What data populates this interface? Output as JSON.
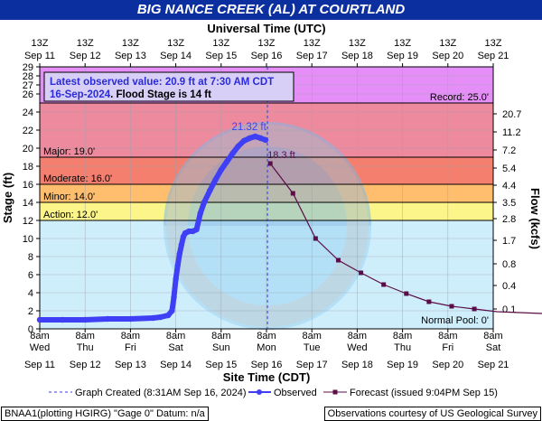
{
  "title": "BIG NANCE CREEK (AL) AT COURTLAND",
  "colors": {
    "header_bg": "#0c2fa0",
    "plot_bg": "#cfeefb",
    "record_zone": "#e58ef8",
    "major_zone": "#ee8a9e",
    "moderate_zone": "#f47f6f",
    "minor_zone": "#ffbe6d",
    "action_zone": "#fbf58a",
    "observed": "#3f3ff5",
    "forecast": "#5b0d47",
    "created_line": "#3b3bd0"
  },
  "chart_data": {
    "type": "line",
    "top_axis_title": "Universal Time (UTC)",
    "top_ticks": [
      {
        "l1": "13Z",
        "l2": "Sep 11"
      },
      {
        "l1": "13Z",
        "l2": "Sep 12"
      },
      {
        "l1": "13Z",
        "l2": "Sep 13"
      },
      {
        "l1": "13Z",
        "l2": "Sep 14"
      },
      {
        "l1": "13Z",
        "l2": "Sep 15"
      },
      {
        "l1": "13Z",
        "l2": "Sep 16"
      },
      {
        "l1": "13Z",
        "l2": "Sep 17"
      },
      {
        "l1": "13Z",
        "l2": "Sep 18"
      },
      {
        "l1": "13Z",
        "l2": "Sep 19"
      },
      {
        "l1": "13Z",
        "l2": "Sep 20"
      },
      {
        "l1": "13Z",
        "l2": "Sep 21"
      }
    ],
    "bottom_axis_title": "Site Time (CDT)",
    "bottom_ticks": [
      {
        "l1": "8am",
        "l2": "Wed",
        "l3": "Sep 11"
      },
      {
        "l1": "8am",
        "l2": "Thu",
        "l3": "Sep 12"
      },
      {
        "l1": "8am",
        "l2": "Fri",
        "l3": "Sep 13"
      },
      {
        "l1": "8am",
        "l2": "Sat",
        "l3": "Sep 14"
      },
      {
        "l1": "8am",
        "l2": "Sun",
        "l3": "Sep 15"
      },
      {
        "l1": "8am",
        "l2": "Mon",
        "l3": "Sep 16"
      },
      {
        "l1": "8am",
        "l2": "Tue",
        "l3": "Sep 17"
      },
      {
        "l1": "8am",
        "l2": "Wed",
        "l3": "Sep 18"
      },
      {
        "l1": "8am",
        "l2": "Thu",
        "l3": "Sep 19"
      },
      {
        "l1": "8am",
        "l2": "Fri",
        "l3": "Sep 20"
      },
      {
        "l1": "8am",
        "l2": "Sat",
        "l3": "Sep 21"
      }
    ],
    "x_range": [
      "2024-09-11 08:00",
      "2024-09-21 08:00"
    ],
    "ylabel": "Stage (ft)",
    "ylim": [
      0,
      29
    ],
    "yticks": [
      0,
      2,
      4,
      6,
      8,
      10,
      12,
      14,
      16,
      18,
      20,
      22,
      24,
      26,
      27,
      28,
      29
    ],
    "y2label": "Flow (kcfs)",
    "y2ticks": [
      {
        "stage": 2.2,
        "label": "0.1"
      },
      {
        "stage": 4.8,
        "label": "0.4"
      },
      {
        "stage": 7.2,
        "label": "0.8"
      },
      {
        "stage": 9.8,
        "label": "1.7"
      },
      {
        "stage": 12.2,
        "label": "2.8"
      },
      {
        "stage": 14.0,
        "label": "3.5"
      },
      {
        "stage": 15.9,
        "label": "4.4"
      },
      {
        "stage": 17.8,
        "label": "5.4"
      },
      {
        "stage": 19.8,
        "label": "7.2"
      },
      {
        "stage": 21.8,
        "label": "11.2"
      },
      {
        "stage": 23.8,
        "label": "20.7"
      }
    ],
    "flood_zones": [
      {
        "label": "Record: 25.0'",
        "stage": 25.0,
        "colorKey": "record_zone",
        "label_side": "right"
      },
      {
        "label": "Major: 19.0'",
        "stage": 19.0,
        "colorKey": "major_zone",
        "label_side": "left"
      },
      {
        "label": "Moderate: 16.0'",
        "stage": 16.0,
        "colorKey": "moderate_zone",
        "label_side": "left"
      },
      {
        "label": "Minor: 14.0'",
        "stage": 14.0,
        "colorKey": "minor_zone",
        "label_side": "left"
      },
      {
        "label": "Action: 12.0'",
        "stage": 12.0,
        "colorKey": "action_zone",
        "label_side": "left"
      }
    ],
    "normal_pool_label": "Normal Pool: 0'",
    "latest_box": {
      "line1": "Latest observed value: 20.9 ft at 7:30 AM CDT",
      "line2_date": "16-Sep-2024",
      "line2_rest": ". Flood Stage is 14 ft"
    },
    "observed_peak_label": "21.32 ft",
    "forecast_peak_label": "18.3 ft",
    "graph_created_time": "2024-09-16 08:31",
    "observed": [
      [
        "2024-09-11 08:00",
        1.0
      ],
      [
        "2024-09-11 20:00",
        1.0
      ],
      [
        "2024-09-12 08:00",
        1.0
      ],
      [
        "2024-09-12 20:00",
        1.1
      ],
      [
        "2024-09-13 08:00",
        1.1
      ],
      [
        "2024-09-13 20:00",
        1.2
      ],
      [
        "2024-09-14 00:00",
        1.3
      ],
      [
        "2024-09-14 04:00",
        1.5
      ],
      [
        "2024-09-14 06:00",
        2.0
      ],
      [
        "2024-09-14 07:00",
        3.5
      ],
      [
        "2024-09-14 08:00",
        5.5
      ],
      [
        "2024-09-14 09:00",
        7.0
      ],
      [
        "2024-09-14 10:00",
        8.3
      ],
      [
        "2024-09-14 11:00",
        9.3
      ],
      [
        "2024-09-14 12:00",
        10.2
      ],
      [
        "2024-09-14 13:00",
        10.6
      ],
      [
        "2024-09-14 15:00",
        10.8
      ],
      [
        "2024-09-14 17:00",
        10.8
      ],
      [
        "2024-09-14 19:00",
        11.0
      ],
      [
        "2024-09-14 21:00",
        12.8
      ],
      [
        "2024-09-14 23:00",
        14.0
      ],
      [
        "2024-09-15 02:00",
        15.3
      ],
      [
        "2024-09-15 05:00",
        16.5
      ],
      [
        "2024-09-15 08:00",
        17.6
      ],
      [
        "2024-09-15 11:00",
        18.5
      ],
      [
        "2024-09-15 14:00",
        19.4
      ],
      [
        "2024-09-15 17:00",
        20.2
      ],
      [
        "2024-09-15 20:00",
        20.8
      ],
      [
        "2024-09-15 23:00",
        21.1
      ],
      [
        "2024-09-16 02:00",
        21.3
      ],
      [
        "2024-09-16 05:00",
        21.1
      ],
      [
        "2024-09-16 07:30",
        20.9
      ]
    ],
    "forecast": [
      [
        "2024-09-16 10:00",
        18.3
      ],
      [
        "2024-09-16 22:00",
        15.0
      ],
      [
        "2024-09-17 10:00",
        10.0
      ],
      [
        "2024-09-17 22:00",
        7.6
      ],
      [
        "2024-09-18 10:00",
        6.2
      ],
      [
        "2024-09-18 22:00",
        4.9
      ],
      [
        "2024-09-19 10:00",
        3.9
      ],
      [
        "2024-09-19 22:00",
        3.0
      ],
      [
        "2024-09-20 10:00",
        2.5
      ],
      [
        "2024-09-20 22:00",
        2.2
      ],
      [
        "2024-09-21 10:00",
        1.9
      ],
      [
        "2024-09-21 22:00",
        1.8
      ],
      [
        "2024-09-22 10:00",
        1.7
      ],
      [
        "2024-09-22 22:00",
        1.6
      ],
      [
        "2024-09-23 10:00",
        1.6
      ]
    ],
    "legend": {
      "created": "Graph Created (8:31AM Sep 16, 2024)",
      "observed": "Observed",
      "forecast": "Forecast (issued 9:04PM Sep 15)"
    }
  },
  "footer": {
    "left": "BNAA1(plotting HGIRG) \"Gage 0\" Datum: n/a",
    "right": "Observations courtesy of US Geological Survey"
  }
}
